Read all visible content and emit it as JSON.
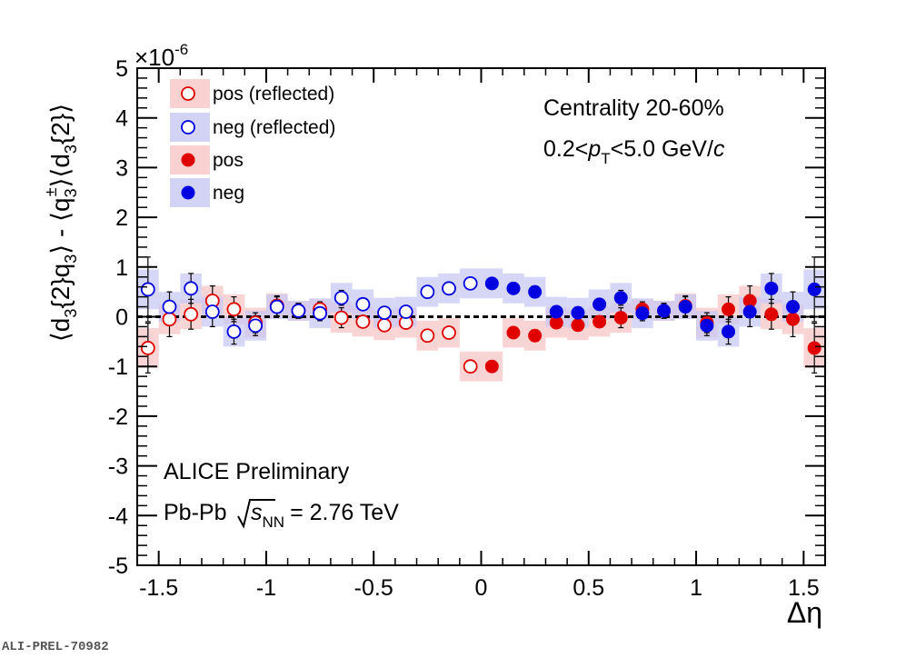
{
  "chart_data": {
    "type": "scatter",
    "xlabel": "Δη",
    "ylabel": "⟨d₃{2}q₃⟩ - ⟨q₃±⟩⟨d₃{2}⟩",
    "y_multiplier": "×10",
    "y_multiplier_exp": "-6",
    "xlim": [
      -1.6,
      1.6
    ],
    "ylim": [
      -5,
      5
    ],
    "x_ticks": [
      -1.5,
      -1,
      -0.5,
      0,
      0.5,
      1,
      1.5
    ],
    "x_tick_labels": [
      "-1.5",
      "-1",
      "-0.5",
      "0",
      "0.5",
      "1",
      "1.5"
    ],
    "y_ticks": [
      -5,
      -4,
      -3,
      -2,
      -1,
      0,
      1,
      2,
      3,
      4,
      5
    ],
    "y_tick_labels": [
      "-5",
      "-4",
      "-3",
      "-2",
      "-1",
      "0",
      "1",
      "2",
      "3",
      "4",
      "5"
    ],
    "reference_line_y": 0,
    "legend": [
      {
        "label": "pos (reflected)",
        "marker": "open-circle",
        "color": "#e00000",
        "band": "#f7c6c6"
      },
      {
        "label": "neg (reflected)",
        "marker": "open-circle",
        "color": "#0000e0",
        "band": "#c8c8f4"
      },
      {
        "label": "pos",
        "marker": "filled-circle",
        "color": "#e00000",
        "band": "#f7c6c6"
      },
      {
        "label": "neg",
        "marker": "filled-circle",
        "color": "#0000e0",
        "band": "#c8c8f4"
      }
    ],
    "colors": {
      "pos": "#e00000",
      "neg": "#0000e0",
      "pos_band": "#f7c6c6",
      "neg_band": "#c8c8f4"
    },
    "annotations": {
      "centrality": "Centrality 20-60%",
      "pt_prefix": "0.2<",
      "pt_p": "p",
      "pt_sub": "T",
      "pt_suffix": "<5.0 GeV/",
      "pt_c": "c",
      "alice": "ALICE Preliminary",
      "system": "Pb-Pb",
      "s": "s",
      "s_sub": "NN",
      "energy": "= 2.76 TeV"
    },
    "series": [
      {
        "name": "pos (reflected)",
        "marker": "open",
        "color": "#e00000",
        "band_color": "#f7c6c6",
        "x": [
          -1.55,
          -1.45,
          -1.35,
          -1.25,
          -1.15,
          -1.05,
          -0.95,
          -0.85,
          -0.75,
          -0.65,
          -0.55,
          -0.45,
          -0.35,
          -0.25,
          -0.15,
          -0.05
        ],
        "y": [
          -0.63,
          -0.05,
          0.05,
          0.32,
          0.15,
          -0.12,
          0.22,
          0.12,
          0.15,
          -0.02,
          -0.1,
          -0.17,
          -0.12,
          -0.38,
          -0.32,
          -1.0
        ],
        "err": [
          0.5,
          0.35,
          0.3,
          0.3,
          0.25,
          0.2,
          0.2,
          0.15,
          0.15,
          0.2,
          0.1,
          0.1,
          0.1,
          0.1,
          0.1,
          0.1
        ],
        "sys": [
          0.4,
          0.3,
          0.3,
          0.3,
          0.3,
          0.3,
          0.25,
          0.2,
          0.2,
          0.3,
          0.3,
          0.3,
          0.3,
          0.3,
          0.3,
          0.3
        ]
      },
      {
        "name": "neg (reflected)",
        "marker": "open",
        "color": "#0000e0",
        "band_color": "#c8c8f4",
        "x": [
          -1.55,
          -1.45,
          -1.35,
          -1.25,
          -1.15,
          -1.05,
          -0.95,
          -0.85,
          -0.75,
          -0.65,
          -0.55,
          -0.45,
          -0.35,
          -0.25,
          -0.15,
          -0.05
        ],
        "y": [
          0.55,
          0.2,
          0.57,
          0.1,
          -0.3,
          -0.18,
          0.2,
          0.12,
          0.07,
          0.38,
          0.25,
          0.08,
          0.1,
          0.5,
          0.57,
          0.67
        ],
        "err": [
          0.65,
          0.3,
          0.3,
          0.3,
          0.25,
          0.2,
          0.2,
          0.15,
          0.15,
          0.15,
          0.1,
          0.1,
          0.1,
          0.1,
          0.1,
          0.1
        ],
        "sys": [
          0.4,
          0.3,
          0.3,
          0.3,
          0.3,
          0.3,
          0.25,
          0.2,
          0.3,
          0.3,
          0.3,
          0.3,
          0.3,
          0.3,
          0.3,
          0.3
        ]
      },
      {
        "name": "pos",
        "marker": "filled",
        "color": "#e00000",
        "band_color": "#f7c6c6",
        "x": [
          0.05,
          0.15,
          0.25,
          0.35,
          0.45,
          0.55,
          0.65,
          0.75,
          0.85,
          0.95,
          1.05,
          1.15,
          1.25,
          1.35,
          1.45,
          1.55
        ],
        "y": [
          -1.0,
          -0.32,
          -0.38,
          -0.12,
          -0.17,
          -0.1,
          -0.02,
          0.15,
          0.12,
          0.22,
          -0.12,
          0.15,
          0.32,
          0.05,
          -0.05,
          -0.63
        ],
        "err": [
          0.1,
          0.1,
          0.1,
          0.1,
          0.1,
          0.1,
          0.2,
          0.15,
          0.15,
          0.2,
          0.2,
          0.25,
          0.3,
          0.3,
          0.35,
          0.5
        ],
        "sys": [
          0.3,
          0.3,
          0.3,
          0.3,
          0.3,
          0.3,
          0.3,
          0.2,
          0.2,
          0.25,
          0.3,
          0.3,
          0.3,
          0.3,
          0.3,
          0.4
        ]
      },
      {
        "name": "neg",
        "marker": "filled",
        "color": "#0000e0",
        "band_color": "#c8c8f4",
        "x": [
          0.05,
          0.15,
          0.25,
          0.35,
          0.45,
          0.55,
          0.65,
          0.75,
          0.85,
          0.95,
          1.05,
          1.15,
          1.25,
          1.35,
          1.45,
          1.55
        ],
        "y": [
          0.67,
          0.57,
          0.5,
          0.1,
          0.08,
          0.25,
          0.38,
          0.07,
          0.12,
          0.2,
          -0.18,
          -0.3,
          0.1,
          0.57,
          0.2,
          0.55
        ],
        "err": [
          0.1,
          0.1,
          0.1,
          0.1,
          0.1,
          0.1,
          0.15,
          0.15,
          0.15,
          0.2,
          0.2,
          0.25,
          0.3,
          0.3,
          0.3,
          0.65
        ],
        "sys": [
          0.3,
          0.3,
          0.3,
          0.3,
          0.3,
          0.3,
          0.3,
          0.3,
          0.2,
          0.25,
          0.3,
          0.3,
          0.3,
          0.3,
          0.3,
          0.4
        ]
      }
    ]
  },
  "watermark": "ALI-PREL-70982"
}
